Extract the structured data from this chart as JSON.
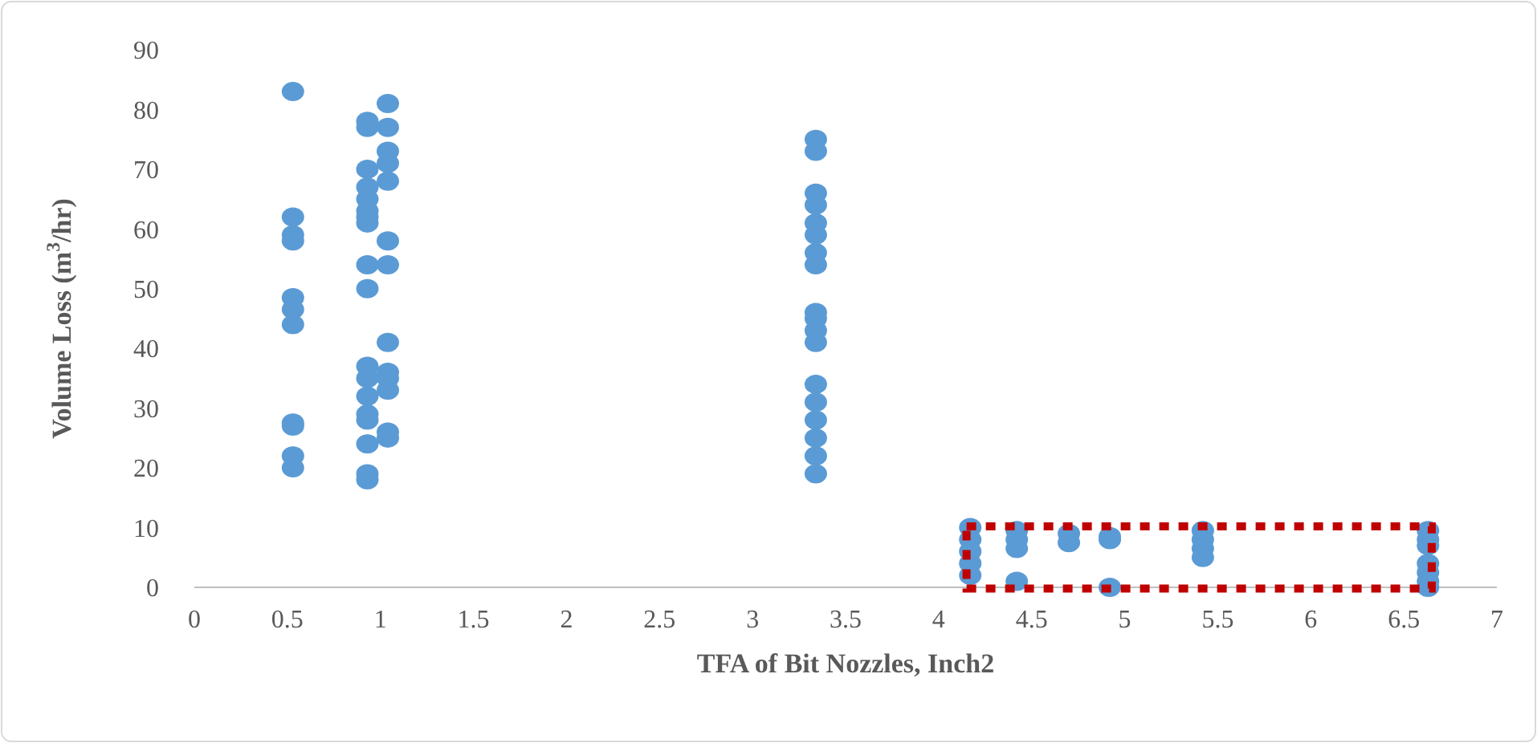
{
  "chart_data": {
    "type": "scatter",
    "xlabel": "TFA of Bit Nozzles, Inch2",
    "ylabel": "Volume Loss (m$^{3}$/hr)",
    "x": [
      0.53,
      0.53,
      0.53,
      0.53,
      0.53,
      0.53,
      0.53,
      0.53,
      0.53,
      0.53,
      0.53,
      0.93,
      0.93,
      0.93,
      0.93,
      0.93,
      0.93,
      0.93,
      0.93,
      0.93,
      0.93,
      0.93,
      0.93,
      0.93,
      0.93,
      0.93,
      0.93,
      0.93,
      0.93,
      1.04,
      1.04,
      1.04,
      1.04,
      1.04,
      1.04,
      1.04,
      1.04,
      1.04,
      1.04,
      1.04,
      1.04,
      1.04,
      3.34,
      3.34,
      3.34,
      3.34,
      3.34,
      3.34,
      3.34,
      3.34,
      3.34,
      3.34,
      3.34,
      3.34,
      3.34,
      3.34,
      3.34,
      3.34,
      3.34,
      3.34,
      4.17,
      4.17,
      4.17,
      4.17,
      4.17,
      4.42,
      4.42,
      4.42,
      4.42,
      4.7,
      4.7,
      4.92,
      4.92,
      4.92,
      5.42,
      5.42,
      5.42,
      5.42,
      6.63,
      6.63,
      6.63,
      6.63,
      6.63,
      6.63,
      6.63
    ],
    "values": [
      83,
      62,
      59,
      58,
      48.5,
      46.5,
      44,
      27.5,
      27,
      22,
      20,
      78,
      77,
      70,
      67,
      65,
      63,
      62,
      61,
      54,
      50,
      37,
      35,
      32,
      29,
      28,
      24,
      19,
      18,
      81,
      77,
      73,
      71,
      68,
      58,
      54,
      41,
      36,
      35,
      33,
      26,
      25,
      75,
      73,
      66,
      64,
      61,
      59,
      56,
      54,
      46,
      45,
      43,
      41,
      34,
      31,
      28,
      25,
      22,
      19,
      10,
      8,
      6,
      4,
      2,
      9.5,
      8,
      6.5,
      1,
      9,
      7.5,
      8.5,
      8,
      0,
      9.5,
      8,
      6.5,
      5,
      9.5,
      8,
      7,
      4,
      2.5,
      1,
      0
    ],
    "color": "#5b9bd5",
    "marker": "circle",
    "xlim": [
      0,
      7
    ],
    "xticks": [
      0,
      0.5,
      1,
      1.5,
      2,
      2.5,
      3,
      3.5,
      4,
      4.5,
      5,
      5.5,
      6,
      6.5,
      7
    ],
    "ylim": [
      0,
      90
    ],
    "yticks": [
      0,
      10,
      20,
      30,
      40,
      50,
      60,
      70,
      80,
      90
    ],
    "grid": false
  }
}
